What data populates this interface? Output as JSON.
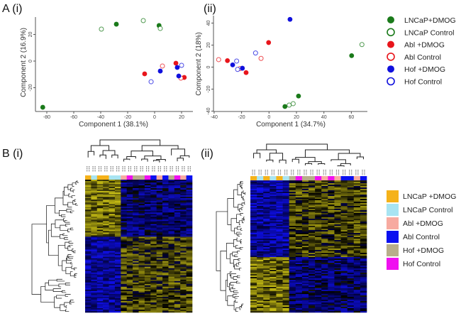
{
  "labels": {
    "A_i": "A (i)",
    "A_ii": "(ii)",
    "B_i": "B (i)",
    "B_ii": "(ii)"
  },
  "colors": {
    "lncap_dmog": "#1a7a1a",
    "abl_dmog": "#e8151b",
    "hof_dmog": "#1010dd",
    "hm_lncap_dmog": "#f5b21a",
    "hm_lncap_control": "#a8e4f2",
    "hm_abl_dmog": "#f7aaa0",
    "hm_abl_control": "#0a10f0",
    "hm_hof_dmog": "#b8ae8a",
    "hm_hof_control": "#f010f0"
  },
  "pca_legend": [
    {
      "label": "LNCaP+DMOG",
      "color": "#1a7a1a",
      "filled": true
    },
    {
      "label": "LNCaP Control",
      "color": "#1a7a1a",
      "filled": false
    },
    {
      "label": "Abl +DMOG",
      "color": "#e8151b",
      "filled": true
    },
    {
      "label": "Abl Control",
      "color": "#e8151b",
      "filled": false
    },
    {
      "label": "Hof +DMOG",
      "color": "#1010dd",
      "filled": true
    },
    {
      "label": "Hof Control",
      "color": "#1010dd",
      "filled": false
    }
  ],
  "heatmap_legend": [
    {
      "label": "LNCaP +DMOG",
      "color": "#f5b21a"
    },
    {
      "label": "LNCaP Control",
      "color": "#a8e4f2"
    },
    {
      "label": "Abl +DMOG",
      "color": "#f7aaa0"
    },
    {
      "label": "Abl Control",
      "color": "#0a10f0"
    },
    {
      "label": "Hof +DMOG",
      "color": "#b8ae8a"
    },
    {
      "label": "Hof Control",
      "color": "#f010f0"
    }
  ],
  "chart_data": [
    {
      "type": "scatter",
      "panel": "A (i)",
      "xlabel": "Component 1 (38.1%)",
      "ylabel": "Component 2 (16.9%)",
      "xlim": [
        -90,
        27
      ],
      "ylim": [
        -38,
        34
      ],
      "xticks": [
        "-80",
        "-60",
        "-40",
        "-20",
        "0",
        "20"
      ],
      "yticks": [
        "20",
        "0",
        "-20"
      ],
      "series": [
        {
          "name": "LNCaP+DMOG",
          "points": [
            [
              -28.4,
              27.7
            ],
            [
              3.3,
              26.7
            ],
            [
              -83,
              -34.7
            ]
          ]
        },
        {
          "name": "LNCaP Control",
          "points": [
            [
              -39.5,
              24
            ],
            [
              -8.4,
              30.4
            ],
            [
              4.2,
              24.5
            ]
          ]
        },
        {
          "name": "Abl +DMOG",
          "points": [
            [
              -7.4,
              -9.6
            ],
            [
              15.8,
              -1.6
            ],
            [
              22,
              -12.3
            ]
          ]
        },
        {
          "name": "Abl Control",
          "points": [
            [
              5.8,
              -3.7
            ],
            [
              19.5,
              -12.8
            ]
          ]
        },
        {
          "name": "Hof +DMOG",
          "points": [
            [
              4.2,
              -7.5
            ],
            [
              16.8,
              -4.8
            ],
            [
              17.9,
              -11.2
            ]
          ]
        },
        {
          "name": "Hof Control",
          "points": [
            [
              -2.6,
              -15.5
            ],
            [
              20,
              -3.2
            ]
          ]
        }
      ]
    },
    {
      "type": "scatter",
      "panel": "(ii)",
      "xlabel": "Component 1 (34.7%)",
      "ylabel": "Component 2 (18%)",
      "xlim": [
        -42,
        72
      ],
      "ylim": [
        -40,
        44
      ],
      "xticks": [
        "-40",
        "-20",
        "0",
        "20",
        "40",
        "60"
      ],
      "yticks": [
        "40",
        "20",
        "0",
        "-20",
        "-40"
      ],
      "series": [
        {
          "name": "LNCaP+DMOG",
          "points": [
            [
              60.2,
              10.4
            ],
            [
              21.5,
              -26.3
            ],
            [
              11.6,
              -35.8
            ]
          ]
        },
        {
          "name": "LNCaP Control",
          "points": [
            [
              67.7,
              20.5
            ],
            [
              14.7,
              -34.5
            ],
            [
              17.6,
              -33.2
            ]
          ]
        },
        {
          "name": "Abl +DMOG",
          "points": [
            [
              -0.3,
              22.3
            ],
            [
              -30.3,
              5.9
            ],
            [
              -16.7,
              -5
            ]
          ]
        },
        {
          "name": "Abl Control",
          "points": [
            [
              -36.7,
              6.8
            ],
            [
              -5.8,
              7.9
            ],
            [
              -21.2,
              -1.4
            ]
          ]
        },
        {
          "name": "Hof +DMOG",
          "points": [
            [
              15.3,
              43.4
            ],
            [
              -26.5,
              2
            ],
            [
              -19.4,
              -1
            ]
          ]
        },
        {
          "name": "Hof Control",
          "points": [
            [
              -9.8,
              12.8
            ],
            [
              -23.6,
              5.5
            ],
            [
              -22.9,
              -2.1
            ]
          ]
        }
      ]
    },
    {
      "type": "heatmap",
      "panel": "B (i)",
      "column_groups": [
        "LNCaP +DMOG",
        "LNCaP Control",
        "LNCaP +DMOG",
        "LNCaP +DMOG",
        "LNCaP Control",
        "LNCaP Control",
        "Abl +DMOG",
        "Hof Control",
        "Hof +DMOG",
        "Hof +DMOG",
        "Hof Control",
        "Abl Control",
        "Abl +DMOG",
        "Abl Control",
        "Hof +DMOG",
        "Hof Control",
        "Abl +DMOG",
        "Abl Control"
      ]
    },
    {
      "type": "heatmap",
      "panel": "(ii)",
      "column_groups": [
        "LNCaP +DMOG",
        "LNCaP Control",
        "LNCaP +DMOG",
        "LNCaP Control",
        "LNCaP +DMOG",
        "LNCaP Control",
        "Hof +DMOG",
        "Hof Control",
        "Hof +DMOG",
        "Hof +DMOG",
        "Hof Control",
        "Abl +DMOG",
        "Hof Control",
        "Abl +DMOG",
        "Abl Control",
        "Abl Control",
        "Abl +DMOG",
        "Abl Control"
      ]
    }
  ]
}
